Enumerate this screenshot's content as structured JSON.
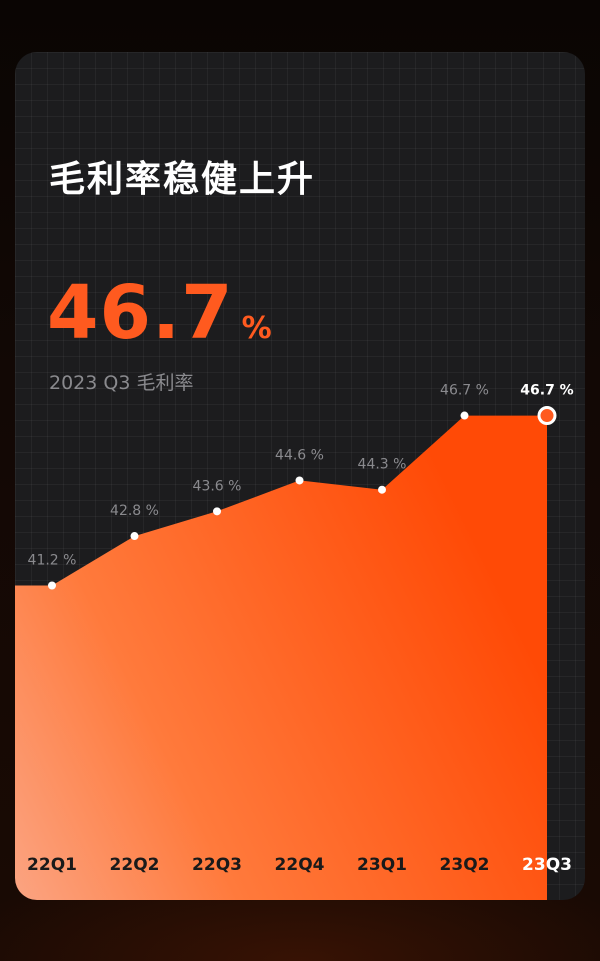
{
  "header": {
    "title": "毛利率稳健上升",
    "headline_value": "46.7",
    "headline_unit": "%",
    "subtitle": "2023 Q3 毛利率"
  },
  "colors": {
    "accent": "#ff5a1f",
    "card_bg": "#1c1c1e",
    "label_muted": "#8a8a8e",
    "label_highlight": "#ffffff"
  },
  "chart_data": {
    "type": "area",
    "categories": [
      "22Q1",
      "22Q2",
      "22Q3",
      "22Q4",
      "23Q1",
      "23Q2",
      "23Q3"
    ],
    "values": [
      41.2,
      42.8,
      43.6,
      44.6,
      44.3,
      46.7,
      46.7
    ],
    "data_labels": [
      "41.2 %",
      "42.8 %",
      "43.6 %",
      "44.6 %",
      "44.3 %",
      "46.7 %",
      "46.7 %"
    ],
    "highlight_index": 6,
    "title": "",
    "xlabel": "",
    "ylabel": "",
    "grid": true,
    "legend": "none"
  }
}
